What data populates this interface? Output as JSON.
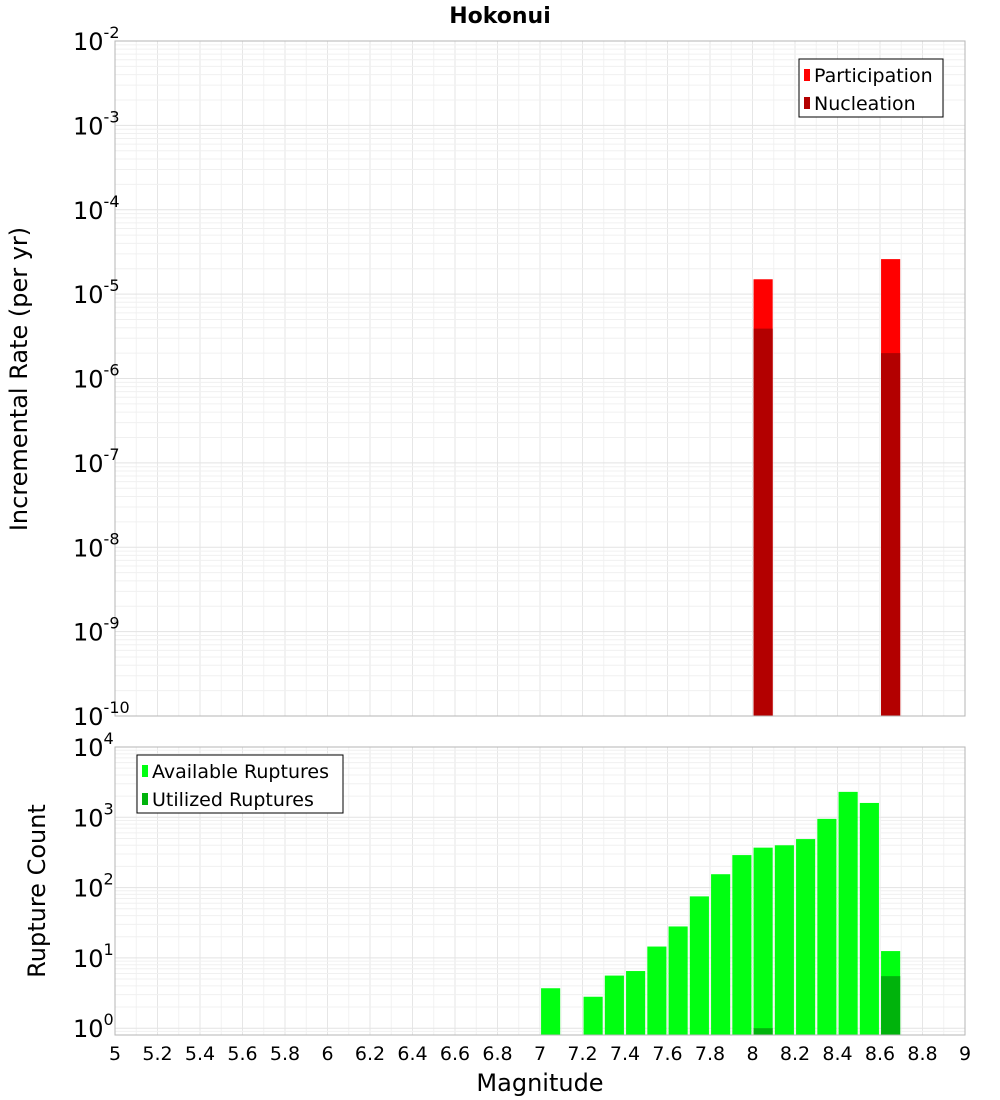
{
  "chart_data": [
    {
      "type": "bar",
      "title": "Hokonui",
      "xlabel": "",
      "ylabel": "Incremental Rate (per yr)",
      "yscale": "log",
      "ylim": [
        1e-10,
        0.01
      ],
      "xlim": [
        5,
        9
      ],
      "bin_width": 0.1,
      "grid": true,
      "legend_position": "top-right",
      "y_tick_labels": [
        {
          "base": "10",
          "exp": "-10"
        },
        {
          "base": "10",
          "exp": "-9"
        },
        {
          "base": "10",
          "exp": "-8"
        },
        {
          "base": "10",
          "exp": "-7"
        },
        {
          "base": "10",
          "exp": "-6"
        },
        {
          "base": "10",
          "exp": "-5"
        },
        {
          "base": "10",
          "exp": "-4"
        },
        {
          "base": "10",
          "exp": "-3"
        },
        {
          "base": "10",
          "exp": "-2"
        }
      ],
      "series": [
        {
          "name": "Participation",
          "color": "#ff0000",
          "points": [
            {
              "x": 8.05,
              "y": 1.5e-05
            },
            {
              "x": 8.65,
              "y": 2.6e-05
            }
          ]
        },
        {
          "name": "Nucleation",
          "color": "#b30000",
          "points": [
            {
              "x": 8.05,
              "y": 3.9e-06
            },
            {
              "x": 8.65,
              "y": 2e-06
            }
          ]
        }
      ]
    },
    {
      "type": "bar",
      "xlabel": "Magnitude",
      "ylabel": "Rupture Count",
      "yscale": "log",
      "ylim": [
        0.8,
        10000
      ],
      "xlim": [
        5,
        9
      ],
      "bin_width": 0.1,
      "grid": true,
      "legend_position": "top-left",
      "x_tick_labels": [
        "5",
        "5.2",
        "5.4",
        "5.6",
        "5.8",
        "6",
        "6.2",
        "6.4",
        "6.6",
        "6.8",
        "7",
        "7.2",
        "7.4",
        "7.6",
        "7.8",
        "8",
        "8.2",
        "8.4",
        "8.6",
        "8.8",
        "9"
      ],
      "y_tick_labels": [
        {
          "base": "10",
          "exp": "0"
        },
        {
          "base": "10",
          "exp": "1"
        },
        {
          "base": "10",
          "exp": "2"
        },
        {
          "base": "10",
          "exp": "3"
        },
        {
          "base": "10",
          "exp": "4"
        }
      ],
      "series": [
        {
          "name": "Available Ruptures",
          "color": "#00ff11",
          "points": [
            {
              "x": 7.05,
              "y": 3.7
            },
            {
              "x": 7.25,
              "y": 2.8
            },
            {
              "x": 7.35,
              "y": 5.6
            },
            {
              "x": 7.45,
              "y": 6.5
            },
            {
              "x": 7.55,
              "y": 14.5
            },
            {
              "x": 7.65,
              "y": 28
            },
            {
              "x": 7.75,
              "y": 75
            },
            {
              "x": 7.85,
              "y": 155
            },
            {
              "x": 7.95,
              "y": 290
            },
            {
              "x": 8.05,
              "y": 370
            },
            {
              "x": 8.15,
              "y": 400
            },
            {
              "x": 8.25,
              "y": 490
            },
            {
              "x": 8.35,
              "y": 950
            },
            {
              "x": 8.45,
              "y": 2300
            },
            {
              "x": 8.55,
              "y": 1600
            },
            {
              "x": 8.65,
              "y": 12.5
            }
          ]
        },
        {
          "name": "Utilized Ruptures",
          "color": "#00b30c",
          "points": [
            {
              "x": 8.05,
              "y": 1.0
            },
            {
              "x": 8.65,
              "y": 5.5
            }
          ]
        }
      ]
    }
  ]
}
